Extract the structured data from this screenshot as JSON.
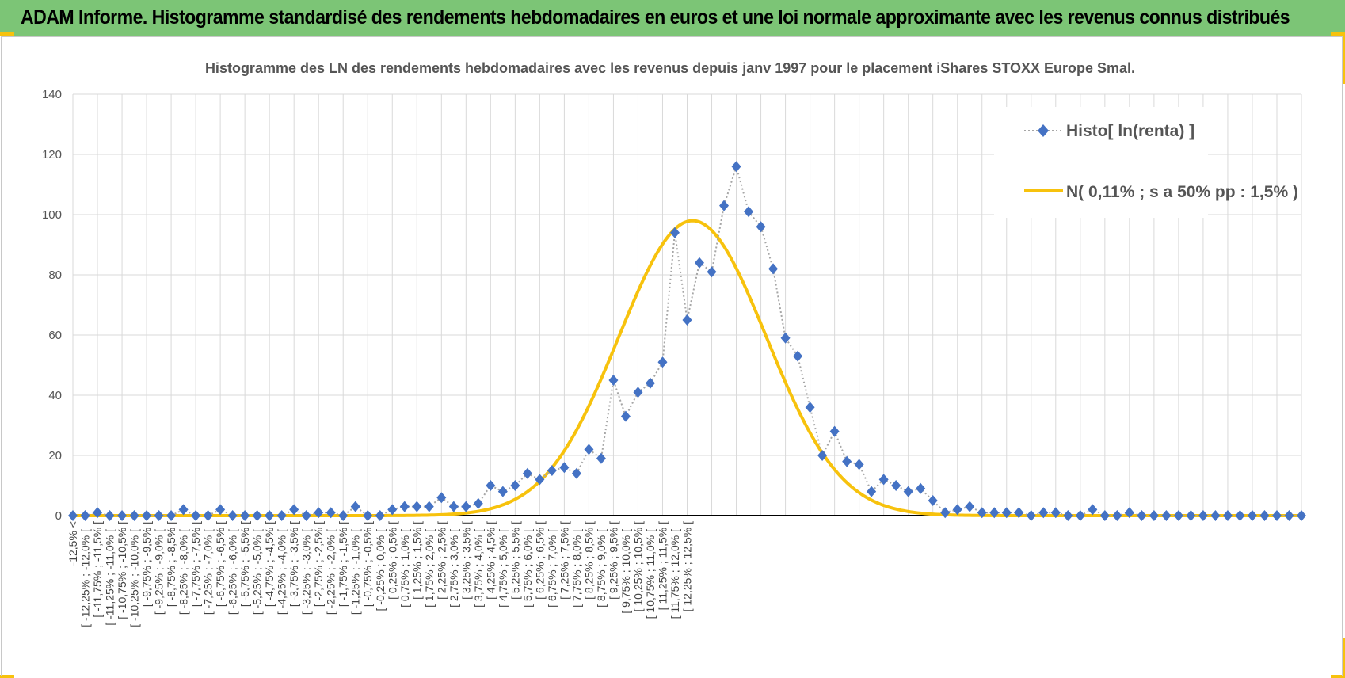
{
  "report": {
    "banner_title": "ADAM Informe. Histogramme standardisé des rendements hebdomadaires en euros et une loi normale approximante avec les revenus connus distribués",
    "accent_color": "#7cc576",
    "corner_color": "#f7c20d"
  },
  "chart_data": {
    "type": "line",
    "title": "Histogramme des LN des rendements hebdomadaires avec les revenus depuis janv 1997 pour le placement iShares STOXX Europe Smal.",
    "xlabel": "",
    "ylabel": "",
    "ylim": [
      0,
      140
    ],
    "yticks": [
      "0",
      "20",
      "40",
      "60",
      "80",
      "100",
      "120",
      "140"
    ],
    "grid": true,
    "legend_position": "top-right",
    "categories": [
      "-12,5% <",
      "[ -12,25% ; -12,0% [",
      "[ -11,75% ; -11,5% [",
      "[ -11,25% ; -11,0% [",
      "[ -10,75% ; -10,5% [",
      "[ -10,25% ; -10,0% [",
      "[ -9,75% ; -9,5% [",
      "[ -9,25% ; -9,0% [",
      "[ -8,75% ; -8,5% [",
      "[ -8,25% ; -8,0% [",
      "[ -7,75% ; -7,5% [",
      "[ -7,25% ; -7,0% [",
      "[ -6,75% ; -6,5% [",
      "[ -6,25% ; -6,0% [",
      "[ -5,75% ; -5,5% [",
      "[ -5,25% ; -5,0% [",
      "[ -4,75% ; -4,5% [",
      "[ -4,25% ; -4,0% [",
      "[ -3,75% ; -3,5% [",
      "[ -3,25% ; -3,0% [",
      "[ -2,75% ; -2,5% [",
      "[ -2,25% ; -2,0% [",
      "[ -1,75% ; -1,5% [",
      "[ -1,25% ; -1,0% [",
      "[ -0,75% ; -0,5% [",
      "[ -0,25% ; 0,0% [",
      "[ 0,25% ; 0,5% [",
      "[ 0,75% ; 1,0% [",
      "[ 1,25% ; 1,5% [",
      "[ 1,75% ; 2,0% [",
      "[ 2,25% ; 2,5% [",
      "[ 2,75% ; 3,0% [",
      "[ 3,25% ; 3,5% [",
      "[ 3,75% ; 4,0% [",
      "[ 4,25% ; 4,5% [",
      "[ 4,75% ; 5,0% [",
      "[ 5,25% ; 5,5% [",
      "[ 5,75% ; 6,0% [",
      "[ 6,25% ; 6,5% [",
      "[ 6,75% ; 7,0% [",
      "[ 7,25% ; 7,5% [",
      "[ 7,75% ; 8,0% [",
      "[ 8,25% ; 8,5% [",
      "[ 8,75% ; 9,0% [",
      "[ 9,25% ; 9,5% [",
      "[ 9,75% ; 10,0% [",
      "[ 10,25% ; 10,5% [",
      "[ 10,75% ; 11,0% [",
      "[ 11,25% ; 11,5% [",
      "[ 11,75% ; 12,0% [",
      "[ 12,25% ; 12,5% ["
    ],
    "x": [
      -12.5,
      -12.25,
      -12,
      -11.75,
      -11.5,
      -11.25,
      -11,
      -10.75,
      -10.5,
      -10.25,
      -10,
      -9.75,
      -9.5,
      -9.25,
      -9,
      -8.75,
      -8.5,
      -8.25,
      -8,
      -7.75,
      -7.5,
      -7.25,
      -7,
      -6.75,
      -6.5,
      -6.25,
      -6,
      -5.75,
      -5.5,
      -5.25,
      -5,
      -4.75,
      -4.5,
      -4.25,
      -4,
      -3.75,
      -3.5,
      -3.25,
      -3,
      -2.75,
      -2.5,
      -2.25,
      -2,
      -1.75,
      -1.5,
      -1.25,
      -1,
      -0.75,
      -0.5,
      -0.25,
      0,
      0.25,
      0.5,
      0.75,
      1,
      1.25,
      1.5,
      1.75,
      2,
      2.25,
      2.5,
      2.75,
      3,
      3.25,
      3.5,
      3.75,
      4,
      4.25,
      4.5,
      4.75,
      5,
      5.25,
      5.5,
      5.75,
      6,
      6.25,
      6.5,
      6.75,
      7,
      7.25,
      7.5,
      7.75,
      8,
      8.25,
      8.5,
      8.75,
      9,
      9.25,
      9.5,
      9.75,
      10,
      10.25,
      10.5,
      10.75,
      11,
      11.25,
      11.5,
      11.75,
      12,
      12.25,
      12.5
    ],
    "series": [
      {
        "name": "Histo[ ln(renta) ]",
        "style": "dotted-line-diamond-markers",
        "color": "#4472c4",
        "line_color": "#a6a6a6",
        "values": [
          0,
          0,
          1,
          0,
          0,
          0,
          0,
          0,
          0,
          2,
          0,
          0,
          2,
          0,
          0,
          0,
          0,
          0,
          2,
          0,
          1,
          1,
          0,
          3,
          0,
          0,
          2,
          3,
          3,
          3,
          6,
          3,
          3,
          4,
          10,
          8,
          10,
          14,
          12,
          15,
          16,
          14,
          22,
          19,
          45,
          33,
          41,
          44,
          51,
          94,
          65,
          84,
          81,
          103,
          116,
          101,
          96,
          82,
          59,
          53,
          36,
          20,
          28,
          18,
          17,
          8,
          12,
          10,
          8,
          9,
          5,
          1,
          2,
          3,
          1,
          1,
          1,
          1,
          0,
          1,
          1,
          0,
          0,
          2,
          0,
          0,
          1,
          0,
          0,
          0,
          0,
          0,
          0,
          0,
          0,
          0,
          0,
          0,
          0,
          0,
          0
        ]
      },
      {
        "name": "N( 0,11% ; s a 50% pp : 1,5% )",
        "style": "solid-line",
        "color": "#f7c20d",
        "mean": 0.11,
        "sd": 1.5,
        "peak": 98
      }
    ]
  }
}
